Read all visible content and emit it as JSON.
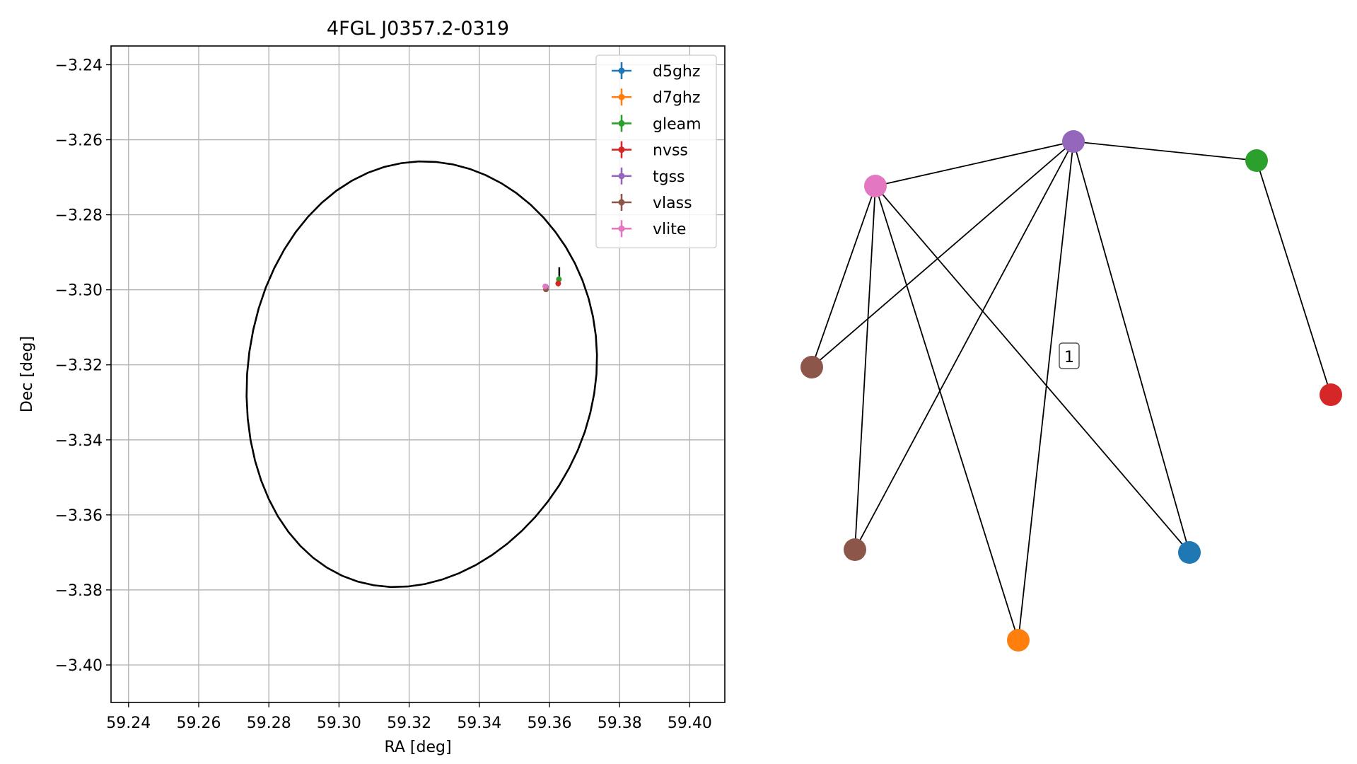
{
  "chart_data": [
    {
      "type": "scatter",
      "title": "4FGL J0357.2-0319",
      "xlabel": "RA [deg]",
      "ylabel": "Dec [deg]",
      "xlim": [
        59.235,
        59.41
      ],
      "ylim": [
        -3.41,
        -3.235
      ],
      "xticks": [
        59.24,
        59.26,
        59.28,
        59.3,
        59.32,
        59.34,
        59.36,
        59.38,
        59.4
      ],
      "xtick_labels": [
        "59.24",
        "59.26",
        "59.28",
        "59.30",
        "59.32",
        "59.34",
        "59.36",
        "59.38",
        "59.40"
      ],
      "yticks": [
        -3.24,
        -3.26,
        -3.28,
        -3.3,
        -3.32,
        -3.34,
        -3.36,
        -3.38,
        -3.4
      ],
      "ytick_labels": [
        "−3.24",
        "−3.26",
        "−3.28",
        "−3.30",
        "−3.32",
        "−3.34",
        "−3.36",
        "−3.38",
        "−3.40"
      ],
      "grid": true,
      "legend_position": "top-right",
      "ellipse": {
        "center": [
          59.3236,
          -3.3225
        ],
        "ra_semi_axis": 0.0498,
        "dec_semi_axis": 0.0566,
        "color": "#000000"
      },
      "series": [
        {
          "name": "d5ghz",
          "color": "#1f77b4",
          "x": [],
          "y": []
        },
        {
          "name": "d7ghz",
          "color": "#ff7f0e",
          "x": [],
          "y": []
        },
        {
          "name": "gleam",
          "color": "#2ca02c",
          "x": [
            59.3627
          ],
          "y": [
            -3.2972
          ],
          "xerr": [
            0.0005
          ],
          "yerr": [
            0.001
          ]
        },
        {
          "name": "nvss",
          "color": "#d62728",
          "x": [
            59.3625
          ],
          "y": [
            -3.2983
          ],
          "xerr": [
            0.0005
          ],
          "yerr": [
            0.0008
          ]
        },
        {
          "name": "tgss",
          "color": "#9467bd",
          "x": [
            59.359
          ],
          "y": [
            -3.2992
          ],
          "xerr": [
            0.0003
          ],
          "yerr": [
            0.0003
          ]
        },
        {
          "name": "vlass",
          "color": "#8c564b",
          "x": [
            59.359
          ],
          "y": [
            -3.2999
          ],
          "xerr": [
            0.0002
          ],
          "yerr": [
            0.0002
          ]
        },
        {
          "name": "vlite",
          "color": "#e377c2",
          "x": [
            59.3588
          ],
          "y": [
            -3.2991
          ],
          "xerr": [
            0.0003
          ],
          "yerr": [
            0.0003
          ]
        }
      ],
      "extra_marks": [
        {
          "color": "#000000",
          "x": [
            59.3628
          ],
          "y": [
            -3.296
          ],
          "yerr": [
            0.002
          ]
        }
      ]
    },
    {
      "type": "network",
      "nodes": [
        {
          "id": "tgss",
          "color": "#9467bd"
        },
        {
          "id": "vlite",
          "color": "#e377c2"
        },
        {
          "id": "gleam",
          "color": "#2ca02c"
        },
        {
          "id": "vlass_a",
          "color": "#8c564b"
        },
        {
          "id": "nvss",
          "color": "#d62728"
        },
        {
          "id": "vlass_b",
          "color": "#8c564b"
        },
        {
          "id": "d5ghz",
          "color": "#1f77b4"
        },
        {
          "id": "d7ghz",
          "color": "#ff7f0e"
        }
      ],
      "edges": [
        [
          "vlite",
          "tgss"
        ],
        [
          "tgss",
          "gleam"
        ],
        [
          "tgss",
          "vlass_a"
        ],
        [
          "tgss",
          "vlass_b"
        ],
        [
          "tgss",
          "d7ghz"
        ],
        [
          "tgss",
          "d5ghz"
        ],
        [
          "vlite",
          "vlass_a"
        ],
        [
          "vlite",
          "vlass_b"
        ],
        [
          "vlite",
          "d7ghz"
        ],
        [
          "vlite",
          "d5ghz"
        ],
        [
          "gleam",
          "nvss"
        ]
      ],
      "edge_label": "1"
    }
  ]
}
